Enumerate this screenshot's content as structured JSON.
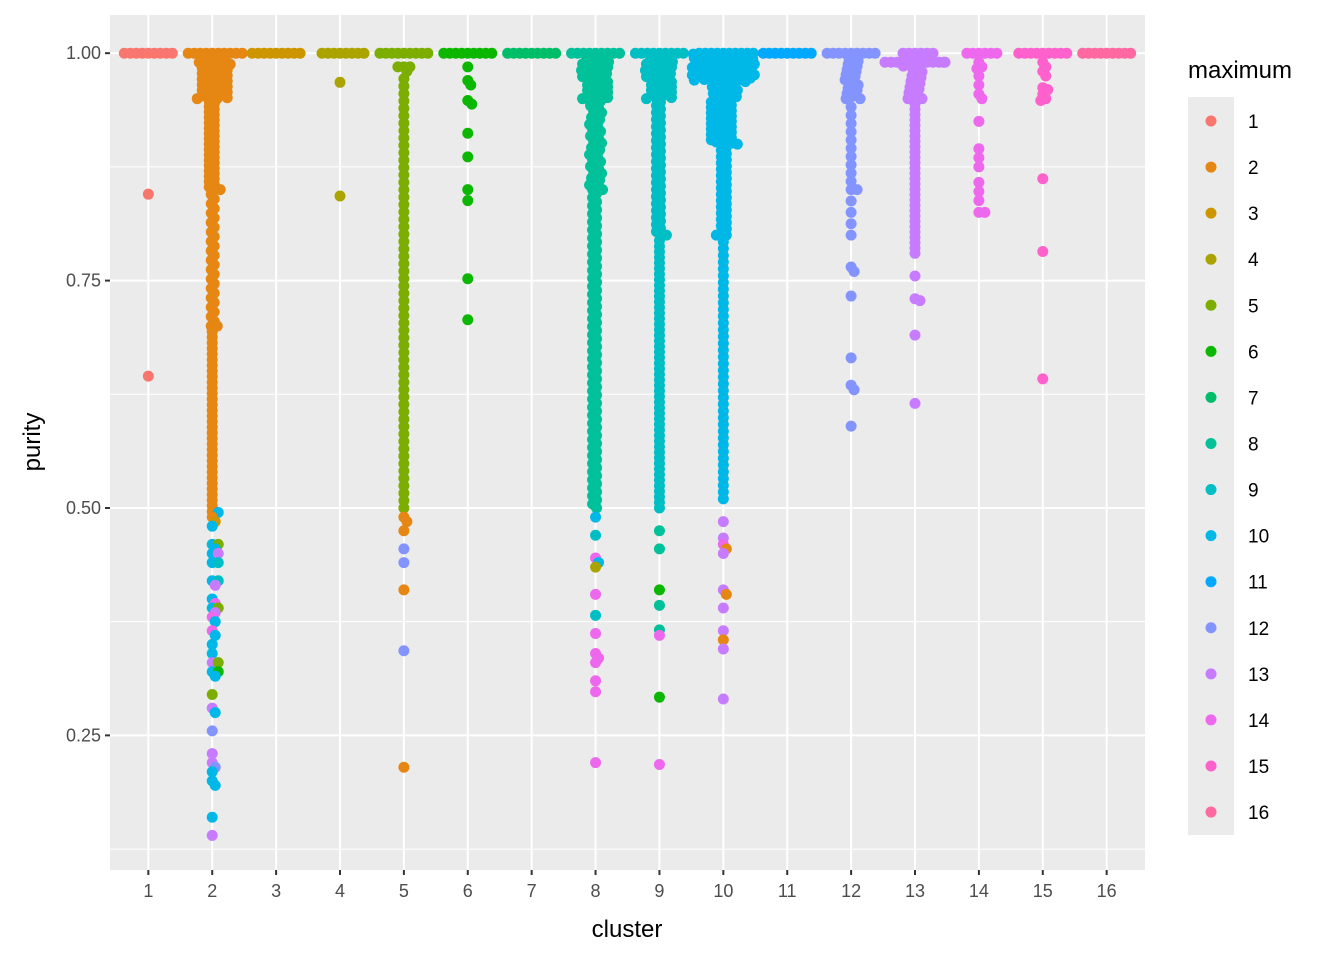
{
  "chart_data": {
    "type": "scatter",
    "subtype": "beeswarm",
    "title": "",
    "xlabel": "cluster",
    "ylabel": "purity",
    "ylim": [
      0.102,
      1.042
    ],
    "xlim": [
      0.4,
      16.6
    ],
    "y_ticks": [
      "0.25",
      "0.50",
      "0.75",
      "1.00"
    ],
    "y_tick_values": [
      0.25,
      0.5,
      0.75,
      1.0
    ],
    "y_minor_values": [
      0.125,
      0.375,
      0.625,
      0.875
    ],
    "categories": [
      "1",
      "2",
      "3",
      "4",
      "5",
      "6",
      "7",
      "8",
      "9",
      "10",
      "11",
      "12",
      "13",
      "14",
      "15",
      "16"
    ],
    "grid": true,
    "background": "#EBEBEB",
    "legend": {
      "title": "maximum",
      "placement": "right",
      "entries": [
        "1",
        "2",
        "3",
        "4",
        "5",
        "6",
        "7",
        "8",
        "9",
        "10",
        "11",
        "12",
        "13",
        "14",
        "15",
        "16"
      ]
    },
    "colors": [
      "#F8766D",
      "#E68613",
      "#CD9600",
      "#ABA300",
      "#7CAE00",
      "#0CB702",
      "#00BE67",
      "#00C19A",
      "#00BFC4",
      "#00B8E7",
      "#00A9FF",
      "#8494FF",
      "#C77CFF",
      "#ED68ED",
      "#FF61CC",
      "#FF68A1"
    ],
    "note_format": "segments: [purity_low, purity_high, count] of points whose maximum equals the cluster; others: [purity, maximum]",
    "clusters": [
      {
        "cluster": 1,
        "segments": [
          [
            1,
            1,
            9
          ],
          [
            0.845,
            0.845,
            1
          ],
          [
            0.645,
            0.645,
            1
          ]
        ],
        "others": []
      },
      {
        "cluster": 2,
        "segments": [
          [
            1,
            1,
            10
          ],
          [
            0.95,
            0.995,
            45
          ],
          [
            0.85,
            0.95,
            35
          ],
          [
            0.7,
            0.85,
            30
          ],
          [
            0.49,
            0.7,
            35
          ]
        ],
        "others": [
          [
            0.495,
            10
          ],
          [
            0.48,
            10
          ],
          [
            0.46,
            10
          ],
          [
            0.455,
            10
          ],
          [
            0.45,
            10
          ],
          [
            0.44,
            10
          ],
          [
            0.42,
            10
          ],
          [
            0.4,
            10
          ],
          [
            0.39,
            10
          ],
          [
            0.375,
            10
          ],
          [
            0.36,
            10
          ],
          [
            0.35,
            10
          ],
          [
            0.34,
            10
          ],
          [
            0.32,
            10
          ],
          [
            0.315,
            10
          ],
          [
            0.275,
            10
          ],
          [
            0.21,
            10
          ],
          [
            0.2,
            10
          ],
          [
            0.195,
            10
          ],
          [
            0.16,
            10
          ],
          [
            0.45,
            13
          ],
          [
            0.415,
            13
          ],
          [
            0.385,
            13
          ],
          [
            0.33,
            13
          ],
          [
            0.28,
            13
          ],
          [
            0.23,
            13
          ],
          [
            0.22,
            13
          ],
          [
            0.14,
            13
          ],
          [
            0.395,
            14
          ],
          [
            0.38,
            14
          ],
          [
            0.365,
            14
          ],
          [
            0.46,
            5
          ],
          [
            0.39,
            5
          ],
          [
            0.33,
            5
          ],
          [
            0.295,
            5
          ],
          [
            0.32,
            6
          ],
          [
            0.44,
            9
          ],
          [
            0.42,
            9
          ],
          [
            0.255,
            12
          ],
          [
            0.215,
            12
          ],
          [
            0.485,
            3
          ]
        ]
      },
      {
        "cluster": 3,
        "segments": [
          [
            1,
            1,
            9
          ]
        ],
        "others": []
      },
      {
        "cluster": 4,
        "segments": [
          [
            1,
            1,
            8
          ],
          [
            0.968,
            0.968,
            1
          ],
          [
            0.843,
            0.843,
            1
          ]
        ],
        "others": []
      },
      {
        "cluster": 5,
        "segments": [
          [
            1,
            1,
            9
          ],
          [
            0.985,
            0.985,
            3
          ],
          [
            0.5,
            0.98,
            60
          ]
        ],
        "others": [
          [
            0.49,
            2
          ],
          [
            0.485,
            2
          ],
          [
            0.475,
            2
          ],
          [
            0.41,
            2
          ],
          [
            0.215,
            2
          ],
          [
            0.455,
            12
          ],
          [
            0.44,
            12
          ],
          [
            0.343,
            12
          ]
        ]
      },
      {
        "cluster": 6,
        "segments": [
          [
            1,
            1,
            9
          ],
          [
            0.985,
            0.985,
            1
          ],
          [
            0.97,
            0.97,
            1
          ],
          [
            0.965,
            0.965,
            1
          ],
          [
            0.948,
            0.948,
            1
          ],
          [
            0.944,
            0.944,
            1
          ],
          [
            0.912,
            0.912,
            1
          ],
          [
            0.886,
            0.886,
            1
          ],
          [
            0.85,
            0.85,
            1
          ],
          [
            0.838,
            0.838,
            1
          ],
          [
            0.752,
            0.752,
            1
          ],
          [
            0.707,
            0.707,
            1
          ]
        ],
        "others": []
      },
      {
        "cluster": 7,
        "segments": [
          [
            1,
            1,
            9
          ]
        ],
        "others": []
      },
      {
        "cluster": 8,
        "segments": [
          [
            1,
            1,
            9
          ],
          [
            0.95,
            0.995,
            40
          ],
          [
            0.85,
            0.95,
            40
          ],
          [
            0.5,
            0.85,
            80
          ]
        ],
        "others": [
          [
            0.445,
            14
          ],
          [
            0.405,
            14
          ],
          [
            0.362,
            14
          ],
          [
            0.34,
            14
          ],
          [
            0.335,
            14
          ],
          [
            0.33,
            14
          ],
          [
            0.31,
            14
          ],
          [
            0.298,
            14
          ],
          [
            0.22,
            14
          ],
          [
            0.49,
            10
          ],
          [
            0.44,
            10
          ],
          [
            0.435,
            4
          ],
          [
            0.382,
            9
          ],
          [
            0.47,
            9
          ]
        ]
      },
      {
        "cluster": 9,
        "segments": [
          [
            1,
            1,
            9
          ],
          [
            0.95,
            0.995,
            40
          ],
          [
            0.8,
            0.95,
            40
          ],
          [
            0.5,
            0.8,
            50
          ]
        ],
        "others": [
          [
            0.475,
            8
          ],
          [
            0.455,
            8
          ],
          [
            0.41,
            6
          ],
          [
            0.393,
            8
          ],
          [
            0.366,
            8
          ],
          [
            0.36,
            14
          ],
          [
            0.292,
            6
          ],
          [
            0.218,
            14
          ]
        ]
      },
      {
        "cluster": 10,
        "segments": [
          [
            1,
            1,
            10
          ],
          [
            0.97,
            0.999,
            80
          ],
          [
            0.9,
            0.97,
            60
          ],
          [
            0.8,
            0.9,
            30
          ],
          [
            0.51,
            0.8,
            40
          ]
        ],
        "others": [
          [
            0.485,
            13
          ],
          [
            0.467,
            13
          ],
          [
            0.45,
            13
          ],
          [
            0.41,
            13
          ],
          [
            0.39,
            13
          ],
          [
            0.365,
            13
          ],
          [
            0.345,
            13
          ],
          [
            0.29,
            13
          ],
          [
            0.455,
            2
          ],
          [
            0.405,
            2
          ],
          [
            0.355,
            2
          ],
          [
            0.46,
            14
          ]
        ]
      },
      {
        "cluster": 11,
        "segments": [
          [
            1,
            1,
            9
          ]
        ],
        "others": []
      },
      {
        "cluster": 12,
        "segments": [
          [
            1,
            1,
            9
          ],
          [
            0.95,
            0.995,
            25
          ],
          [
            0.85,
            0.95,
            12
          ],
          [
            0.8,
            0.85,
            5
          ],
          [
            0.765,
            0.765,
            1
          ],
          [
            0.76,
            0.76,
            1
          ],
          [
            0.733,
            0.733,
            1
          ],
          [
            0.665,
            0.665,
            1
          ],
          [
            0.635,
            0.635,
            1
          ],
          [
            0.63,
            0.63,
            1
          ],
          [
            0.59,
            0.59,
            1
          ]
        ],
        "others": []
      },
      {
        "cluster": 13,
        "segments": [
          [
            1,
            1,
            6
          ],
          [
            0.99,
            0.99,
            12
          ],
          [
            0.95,
            0.99,
            20
          ],
          [
            0.78,
            0.95,
            30
          ],
          [
            0.755,
            0.755,
            1
          ],
          [
            0.73,
            0.73,
            1
          ],
          [
            0.728,
            0.728,
            1
          ],
          [
            0.69,
            0.69,
            1
          ],
          [
            0.615,
            0.615,
            1
          ]
        ],
        "others": []
      },
      {
        "cluster": 14,
        "segments": [
          [
            1,
            1,
            6
          ],
          [
            0.99,
            0.99,
            1
          ],
          [
            0.985,
            0.985,
            1
          ],
          [
            0.983,
            0.983,
            1
          ],
          [
            0.975,
            0.975,
            1
          ],
          [
            0.965,
            0.965,
            1
          ],
          [
            0.955,
            0.955,
            1
          ],
          [
            0.95,
            0.95,
            1
          ],
          [
            0.925,
            0.925,
            1
          ],
          [
            0.895,
            0.895,
            1
          ],
          [
            0.885,
            0.885,
            1
          ],
          [
            0.875,
            0.875,
            1
          ],
          [
            0.858,
            0.858,
            1
          ],
          [
            0.848,
            0.848,
            1
          ],
          [
            0.838,
            0.838,
            1
          ],
          [
            0.825,
            0.825,
            2
          ]
        ],
        "others": []
      },
      {
        "cluster": 15,
        "segments": [
          [
            1,
            1,
            9
          ],
          [
            0.99,
            0.99,
            1
          ],
          [
            0.985,
            0.985,
            1
          ],
          [
            0.98,
            0.98,
            1
          ],
          [
            0.975,
            0.975,
            1
          ],
          [
            0.962,
            0.962,
            1
          ],
          [
            0.96,
            0.96,
            1
          ],
          [
            0.955,
            0.955,
            1
          ],
          [
            0.95,
            0.95,
            1
          ],
          [
            0.948,
            0.948,
            1
          ],
          [
            0.862,
            0.862,
            1
          ],
          [
            0.782,
            0.782,
            1
          ],
          [
            0.642,
            0.642,
            1
          ]
        ],
        "others": []
      },
      {
        "cluster": 16,
        "segments": [
          [
            1,
            1,
            9
          ]
        ],
        "others": []
      }
    ]
  }
}
